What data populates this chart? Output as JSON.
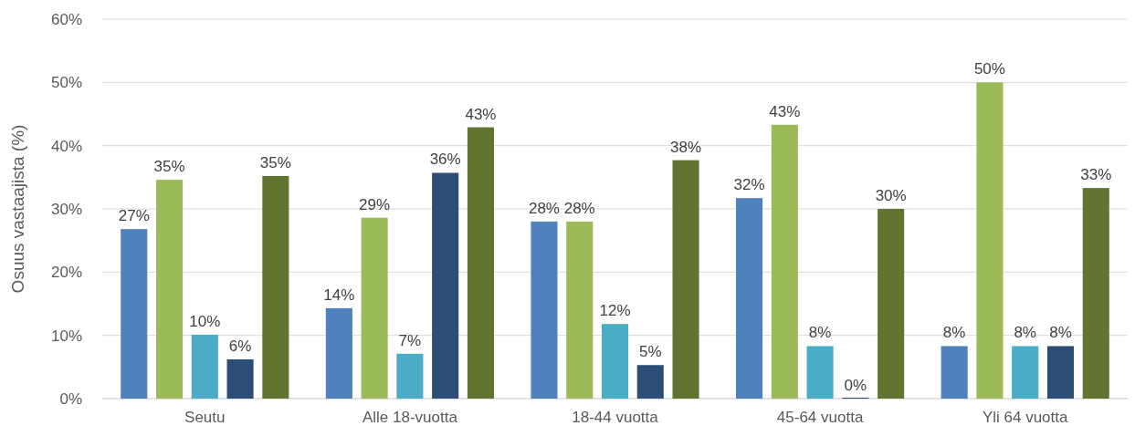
{
  "chart_data": {
    "type": "bar",
    "ylabel": "Osuus vastaajista (%)",
    "categories": [
      "Seutu",
      "Alle 18-vuotta",
      "18-44 vuotta",
      "45-64 vuotta",
      "Yli 64 vuotta"
    ],
    "series": [
      {
        "color": "#4f81bd",
        "values": [
          26.8,
          14.3,
          28,
          31.7,
          8.3
        ],
        "value_labels": [
          "27%",
          "14%",
          "28%",
          "32%",
          "8%"
        ]
      },
      {
        "color": "#9bbb59",
        "values": [
          34.6,
          28.6,
          28,
          43.3,
          50
        ],
        "value_labels": [
          "35%",
          "29%",
          "28%",
          "43%",
          "50%"
        ]
      },
      {
        "color": "#4bacc6",
        "values": [
          10.1,
          7.1,
          11.8,
          8.3,
          8.3
        ],
        "value_labels": [
          "10%",
          "7%",
          "12%",
          "8%",
          "8%"
        ]
      },
      {
        "color": "#2c4d75",
        "values": [
          6.2,
          35.7,
          5.3,
          0,
          8.3
        ],
        "value_labels": [
          "6%",
          "36%",
          "5%",
          "0%",
          "8%"
        ]
      },
      {
        "color": "#5f7530",
        "values": [
          35.2,
          42.9,
          37.7,
          30,
          33.3
        ],
        "value_labels": [
          "35%",
          "43%",
          "38%",
          "30%",
          "33%"
        ]
      }
    ],
    "ylim": [
      0,
      60
    ],
    "yticks": [
      {
        "value": 0,
        "label": "0%"
      },
      {
        "value": 10,
        "label": "10%"
      },
      {
        "value": 20,
        "label": "20%"
      },
      {
        "value": 30,
        "label": "30%"
      },
      {
        "value": 40,
        "label": "40%"
      },
      {
        "value": 50,
        "label": "50%"
      },
      {
        "value": 60,
        "label": "60%"
      }
    ],
    "grid": "y"
  }
}
